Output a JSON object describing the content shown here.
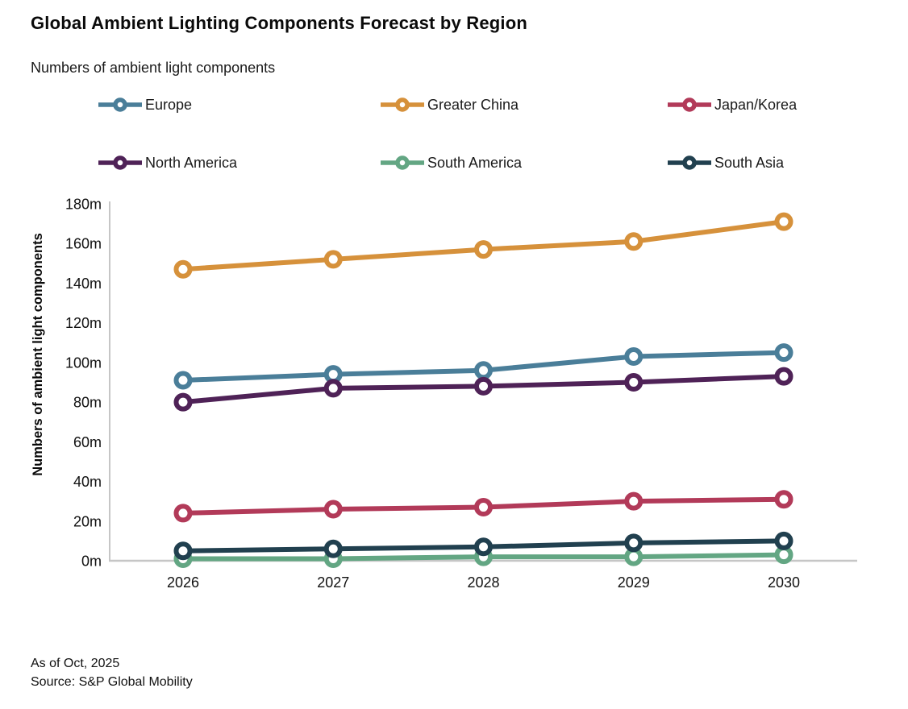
{
  "title": "Global Ambient Lighting Components Forecast by Region",
  "subtitle": "Numbers of ambient light components",
  "footer": {
    "as_of": "As of Oct, 2025",
    "source": "Source: S&P Global Mobility"
  },
  "chart_data": {
    "type": "line",
    "title": "Global Ambient Lighting Components Forecast by Region",
    "x": [
      2026,
      2027,
      2028,
      2029,
      2030
    ],
    "series": [
      {
        "name": "Europe",
        "color": "#4A7E99",
        "values": [
          91,
          94,
          96,
          103,
          105
        ]
      },
      {
        "name": "Greater China",
        "color": "#D6913B",
        "values": [
          147,
          152,
          157,
          161,
          171
        ]
      },
      {
        "name": "Japan/Korea",
        "color": "#B23A59",
        "values": [
          24,
          26,
          27,
          30,
          31
        ]
      },
      {
        "name": "North America",
        "color": "#4F2257",
        "values": [
          80,
          87,
          88,
          90,
          93
        ]
      },
      {
        "name": "South America",
        "color": "#63A683",
        "values": [
          1,
          1,
          2,
          2,
          3
        ]
      },
      {
        "name": "South Asia",
        "color": "#21404F",
        "values": [
          5,
          6,
          7,
          9,
          10
        ]
      }
    ],
    "xlabel": "",
    "ylabel": "Numbers of ambient light components",
    "ylim": [
      0,
      180
    ],
    "ytick_step": 20,
    "ytick_suffix": "m",
    "xtick_labels": [
      "2026",
      "2027",
      "2028",
      "2029",
      "2030"
    ],
    "ytick_labels": [
      "0m",
      "20m",
      "40m",
      "60m",
      "80m",
      "100m",
      "120m",
      "140m",
      "160m",
      "180m"
    ],
    "legend_position": "top",
    "grid": false,
    "axis_color": "#c6c6c6",
    "marker": "open-circle"
  }
}
